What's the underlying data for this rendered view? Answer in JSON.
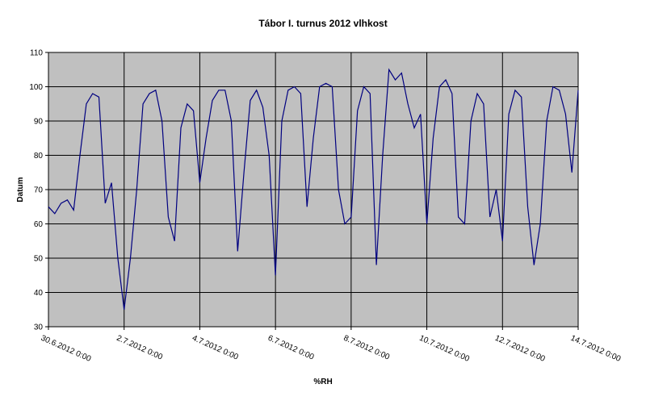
{
  "chart_data": {
    "type": "line",
    "title": "Tábor I. turnus 2012 vlhkost",
    "x_label": "%RH",
    "y_label": "Datum",
    "x": [
      "30.6.2012 0:00",
      "30.6.2012 4:00",
      "30.6.2012 8:00",
      "30.6.2012 12:00",
      "30.6.2012 16:00",
      "30.6.2012 20:00",
      "1.7.2012 0:00",
      "1.7.2012 4:00",
      "1.7.2012 8:00",
      "1.7.2012 12:00",
      "1.7.2012 16:00",
      "1.7.2012 20:00",
      "2.7.2012 0:00",
      "2.7.2012 4:00",
      "2.7.2012 8:00",
      "2.7.2012 12:00",
      "2.7.2012 16:00",
      "2.7.2012 20:00",
      "3.7.2012 0:00",
      "3.7.2012 4:00",
      "3.7.2012 8:00",
      "3.7.2012 12:00",
      "3.7.2012 16:00",
      "3.7.2012 20:00",
      "4.7.2012 0:00",
      "4.7.2012 4:00",
      "4.7.2012 8:00",
      "4.7.2012 12:00",
      "4.7.2012 16:00",
      "4.7.2012 20:00",
      "5.7.2012 0:00",
      "5.7.2012 4:00",
      "5.7.2012 8:00",
      "5.7.2012 12:00",
      "5.7.2012 16:00",
      "5.7.2012 20:00",
      "6.7.2012 0:00",
      "6.7.2012 4:00",
      "6.7.2012 8:00",
      "6.7.2012 12:00",
      "6.7.2012 16:00",
      "6.7.2012 20:00",
      "7.7.2012 0:00",
      "7.7.2012 4:00",
      "7.7.2012 8:00",
      "7.7.2012 12:00",
      "7.7.2012 16:00",
      "7.7.2012 20:00",
      "8.7.2012 0:00",
      "8.7.2012 4:00",
      "8.7.2012 8:00",
      "8.7.2012 12:00",
      "8.7.2012 16:00",
      "8.7.2012 20:00",
      "9.7.2012 0:00",
      "9.7.2012 4:00",
      "9.7.2012 8:00",
      "9.7.2012 12:00",
      "9.7.2012 16:00",
      "9.7.2012 20:00",
      "10.7.2012 0:00",
      "10.7.2012 4:00",
      "10.7.2012 8:00",
      "10.7.2012 12:00",
      "10.7.2012 16:00",
      "10.7.2012 20:00",
      "11.7.2012 0:00",
      "11.7.2012 4:00",
      "11.7.2012 8:00",
      "11.7.2012 12:00",
      "11.7.2012 16:00",
      "11.7.2012 20:00",
      "12.7.2012 0:00",
      "12.7.2012 4:00",
      "12.7.2012 8:00",
      "12.7.2012 12:00",
      "12.7.2012 16:00",
      "12.7.2012 20:00",
      "13.7.2012 0:00",
      "13.7.2012 4:00",
      "13.7.2012 8:00",
      "13.7.2012 12:00",
      "13.7.2012 16:00",
      "13.7.2012 20:00",
      "14.7.2012 0:00"
    ],
    "series": [
      {
        "color": "#000080",
        "values": [
          65,
          63,
          66,
          67,
          64,
          80,
          95,
          98,
          97,
          66,
          72,
          50,
          35,
          50,
          70,
          95,
          98,
          99,
          90,
          62,
          55,
          88,
          95,
          93,
          72,
          85,
          96,
          99,
          99,
          90,
          52,
          75,
          96,
          99,
          94,
          80,
          45,
          90,
          99,
          100,
          98,
          65,
          85,
          100,
          101,
          100,
          70,
          60,
          62,
          93,
          100,
          98,
          48,
          80,
          105,
          102,
          104,
          95,
          88,
          92,
          60,
          85,
          100,
          102,
          98,
          62,
          60,
          90,
          98,
          95,
          62,
          70,
          55,
          92,
          99,
          97,
          65,
          48,
          60,
          90,
          100,
          99,
          92,
          75,
          99
        ]
      }
    ],
    "xlim": [
      "30.6.2012 0:00",
      "14.7.2012 0:00"
    ],
    "xticks": [
      "30.6.2012 0:00",
      "2.7.2012 0:00",
      "4.7.2012 0:00",
      "6.7.2012 0:00",
      "8.7.2012 0:00",
      "10.7.2012 0:00",
      "12.7.2012 0:00",
      "14.7.2012 0:00"
    ],
    "ylim": [
      30,
      110
    ],
    "yticks": [
      30,
      40,
      50,
      60,
      70,
      80,
      90,
      100,
      110
    ],
    "grid": true
  }
}
